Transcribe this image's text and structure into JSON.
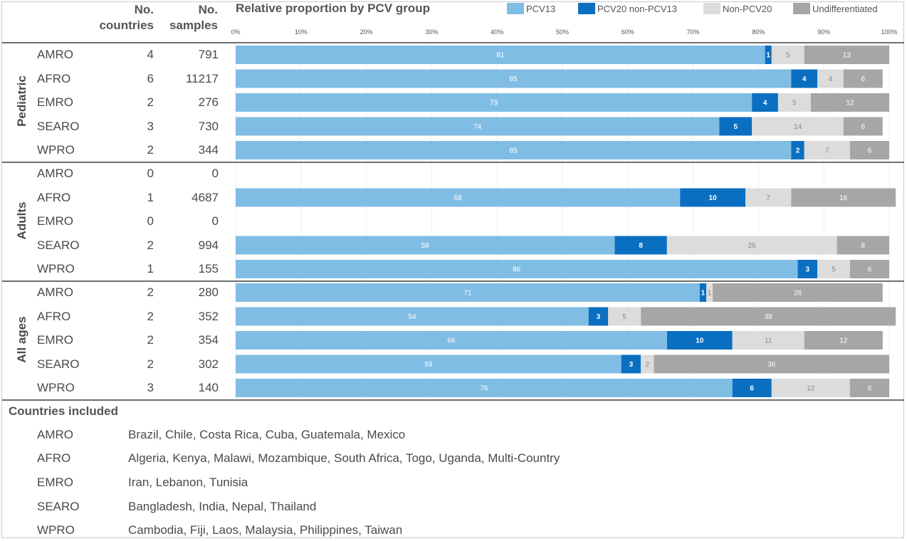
{
  "header": {
    "countries_label_1": "No.",
    "countries_label_2": "countries",
    "samples_label_1": "No.",
    "samples_label_2": "samples",
    "title": "Relative proportion by PCV group"
  },
  "legend": [
    {
      "name": "PCV13",
      "color": "#80bde5"
    },
    {
      "name": "PCV20 non-PCV13",
      "color": "#0b6fc1"
    },
    {
      "name": "Non-PCV20",
      "color": "#dcdcdc"
    },
    {
      "name": "Undifferentiated",
      "color": "#a6a6a6"
    }
  ],
  "groups": [
    "Pediatric",
    "Adults",
    "All ages"
  ],
  "chart_data": {
    "type": "bar",
    "orientation": "horizontal",
    "stacked": true,
    "title": "Relative proportion by PCV group",
    "xlim": [
      0,
      100
    ],
    "x_ticks": [
      "0%",
      "10%",
      "20%",
      "30%",
      "40%",
      "50%",
      "60%",
      "70%",
      "80%",
      "90%",
      "100%"
    ],
    "legend_position": "top-right",
    "grid": true,
    "series_names": [
      "PCV13",
      "PCV20 non-PCV13",
      "Non-PCV20",
      "Undifferentiated"
    ],
    "series_colors": [
      "#80bde5",
      "#0b6fc1",
      "#dcdcdc",
      "#a6a6a6"
    ],
    "rows": [
      {
        "group": "Pediatric",
        "region": "AMRO",
        "countries": "4",
        "samples": "791",
        "values": [
          81,
          1,
          5,
          13
        ]
      },
      {
        "group": "Pediatric",
        "region": "AFRO",
        "countries": "6",
        "samples": "11217",
        "values": [
          85,
          4,
          4,
          6
        ]
      },
      {
        "group": "Pediatric",
        "region": "EMRO",
        "countries": "2",
        "samples": "276",
        "values": [
          79,
          4,
          5,
          12
        ]
      },
      {
        "group": "Pediatric",
        "region": "SEARO",
        "countries": "3",
        "samples": "730",
        "values": [
          74,
          5,
          14,
          6
        ]
      },
      {
        "group": "Pediatric",
        "region": "WPRO",
        "countries": "2",
        "samples": "344",
        "values": [
          85,
          2,
          7,
          6
        ]
      },
      {
        "group": "Adults",
        "region": "AMRO",
        "countries": "0",
        "samples": "0",
        "values": []
      },
      {
        "group": "Adults",
        "region": "AFRO",
        "countries": "1",
        "samples": "4687",
        "values": [
          68,
          10,
          7,
          16
        ]
      },
      {
        "group": "Adults",
        "region": "EMRO",
        "countries": "0",
        "samples": "0",
        "values": []
      },
      {
        "group": "Adults",
        "region": "SEARO",
        "countries": "2",
        "samples": "994",
        "values": [
          58,
          8,
          26,
          8
        ]
      },
      {
        "group": "Adults",
        "region": "WPRO",
        "countries": "1",
        "samples": "155",
        "values": [
          86,
          3,
          5,
          6
        ]
      },
      {
        "group": "All ages",
        "region": "AMRO",
        "countries": "2",
        "samples": "280",
        "values": [
          71,
          1,
          1,
          26
        ]
      },
      {
        "group": "All ages",
        "region": "AFRO",
        "countries": "2",
        "samples": "352",
        "values": [
          54,
          3,
          5,
          39
        ]
      },
      {
        "group": "All ages",
        "region": "EMRO",
        "countries": "2",
        "samples": "354",
        "values": [
          66,
          10,
          11,
          12
        ]
      },
      {
        "group": "All ages",
        "region": "SEARO",
        "countries": "2",
        "samples": "302",
        "values": [
          59,
          3,
          2,
          36
        ]
      },
      {
        "group": "All ages",
        "region": "WPRO",
        "countries": "3",
        "samples": "140",
        "values": [
          76,
          6,
          12,
          6
        ]
      }
    ]
  },
  "footer": {
    "title": "Countries included",
    "rows": [
      {
        "region": "AMRO",
        "countries": "Brazil, Chile, Costa Rica, Cuba, Guatemala, Mexico"
      },
      {
        "region": "AFRO",
        "countries": "Algeria, Kenya, Malawi, Mozambique, South Africa, Togo, Uganda, Multi-Country"
      },
      {
        "region": "EMRO",
        "countries": "Iran, Lebanon, Tunisia"
      },
      {
        "region": "SEARO",
        "countries": "Bangladesh, India, Nepal, Thailand"
      },
      {
        "region": "WPRO",
        "countries": "Cambodia, Fiji, Laos, Malaysia, Philippines, Taiwan"
      }
    ]
  }
}
